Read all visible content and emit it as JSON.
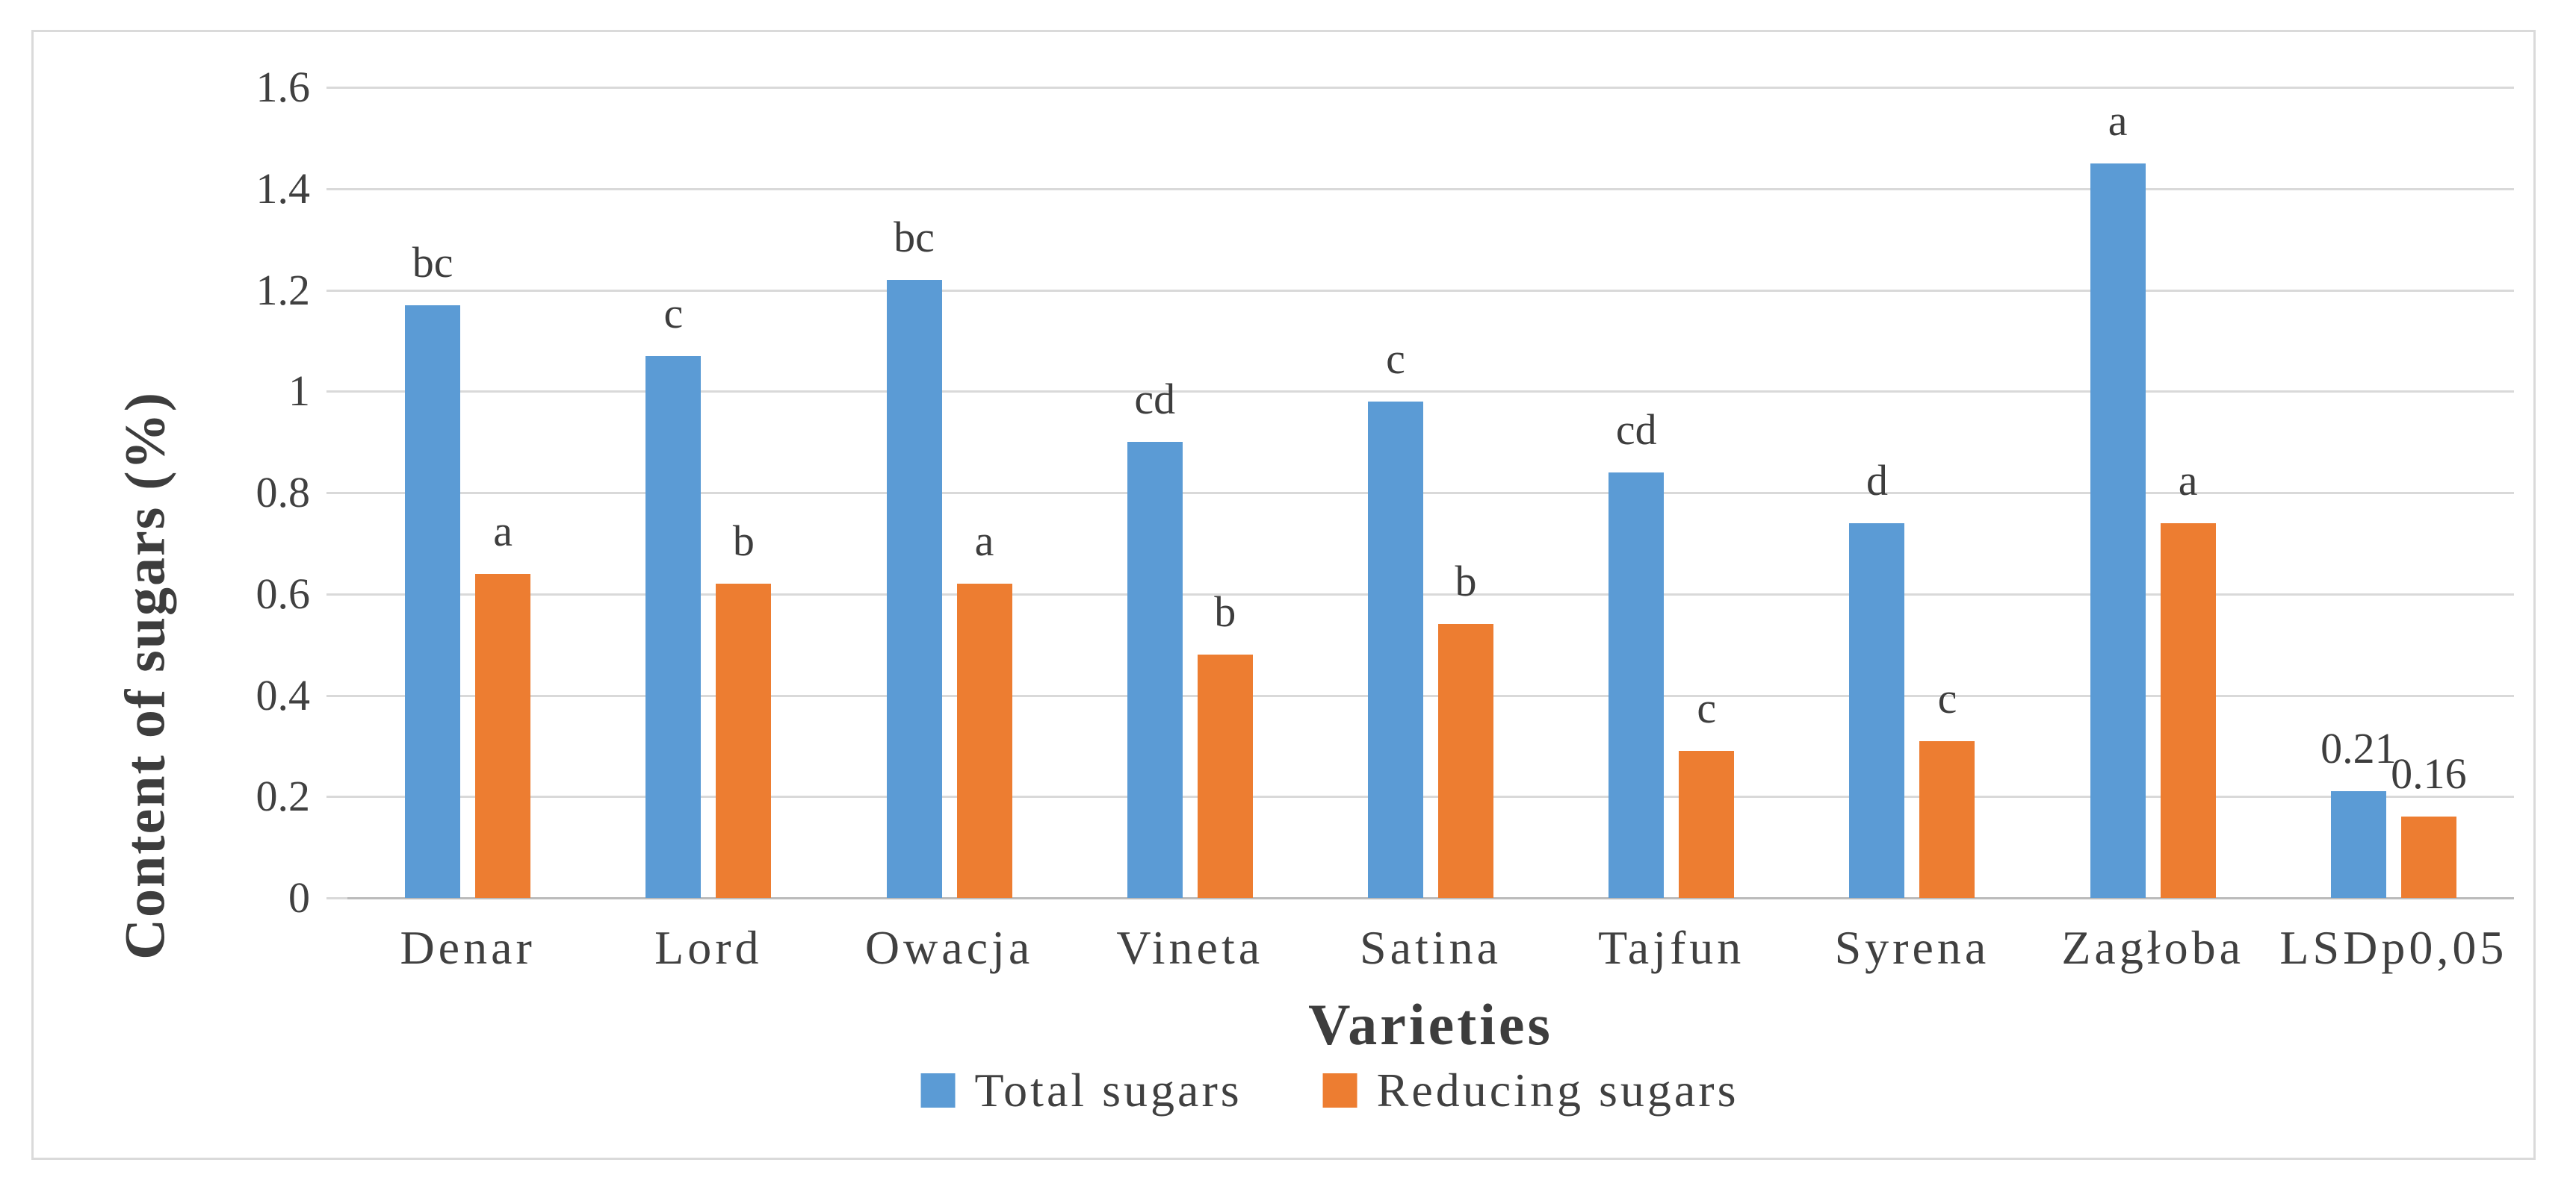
{
  "chart_data": {
    "type": "bar",
    "title": "",
    "categories": [
      "Denar",
      "Lord",
      "Owacja",
      "Vineta",
      "Satina",
      "Tajfun",
      "Syrena",
      "Zagłoba",
      "LSDp0,05"
    ],
    "series": [
      {
        "name": "Total sugars",
        "color": "#5B9BD5",
        "values": [
          1.17,
          1.07,
          1.22,
          0.9,
          0.98,
          0.84,
          0.74,
          1.45,
          0.21
        ],
        "annotations": [
          "bc",
          "c",
          "bc",
          "cd",
          "c",
          "cd",
          "d",
          "a",
          "0.21"
        ]
      },
      {
        "name": "Reducing sugars",
        "color": "#ED7D31",
        "values": [
          0.64,
          0.62,
          0.62,
          0.48,
          0.54,
          0.29,
          0.31,
          0.74,
          0.16
        ],
        "annotations": [
          "a",
          "b",
          "a",
          "b",
          "b",
          "c",
          "c",
          "a",
          "0.16"
        ]
      }
    ],
    "xlabel": "Varieties",
    "ylabel": "Content of sugars (%)",
    "ylim": [
      0,
      1.6
    ],
    "yticks": [
      0,
      0.2,
      0.4,
      0.6,
      0.8,
      1,
      1.2,
      1.4,
      1.6
    ],
    "ytick_labels": [
      "0",
      "0.2",
      "0.4",
      "0.6",
      "0.8",
      "1",
      "1.2",
      "1.4",
      "1.6"
    ],
    "grid": true,
    "legend_position": "bottom"
  },
  "colors": {
    "grid": "#D9D9D9",
    "zero_line": "#BBBBBB",
    "text": "#404040",
    "annotation": "#3D3D3D",
    "frame_border": "#DADADA",
    "background": "#FFFFFF"
  }
}
